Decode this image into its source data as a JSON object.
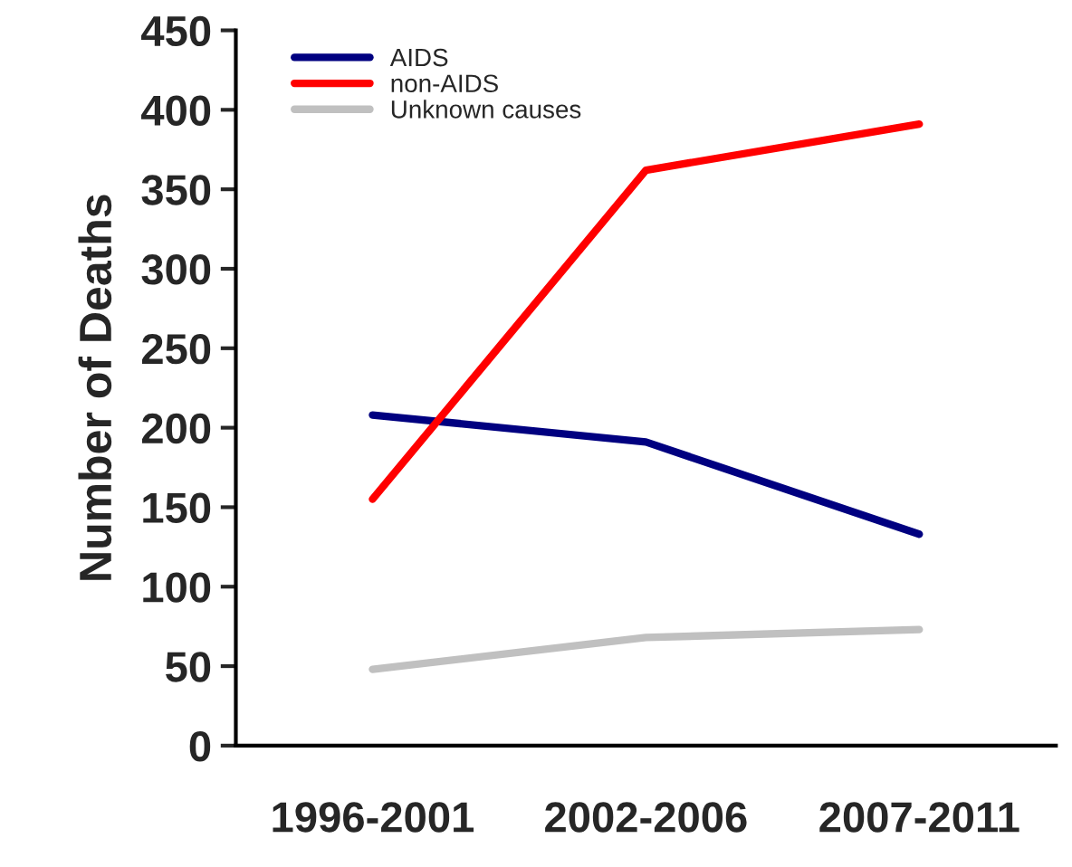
{
  "chart_data": {
    "type": "line",
    "ylabel": "Number of Deaths",
    "categories": [
      "1996-2001",
      "2002-2006",
      "2007-2011"
    ],
    "series": [
      {
        "name": "AIDS",
        "color": "#000080",
        "values": [
          208,
          191,
          133
        ]
      },
      {
        "name": "non-AIDS",
        "color": "#ff0000",
        "values": [
          155,
          362,
          391
        ]
      },
      {
        "name": "Unknown causes",
        "color": "#c0c0c0",
        "values": [
          48,
          68,
          73
        ]
      }
    ],
    "ylim": [
      0,
      450
    ],
    "yticks": [
      0,
      50,
      100,
      150,
      200,
      250,
      300,
      350,
      400,
      450
    ],
    "grid": false,
    "legend": "top left",
    "marker": "none",
    "line_style": "solid"
  }
}
